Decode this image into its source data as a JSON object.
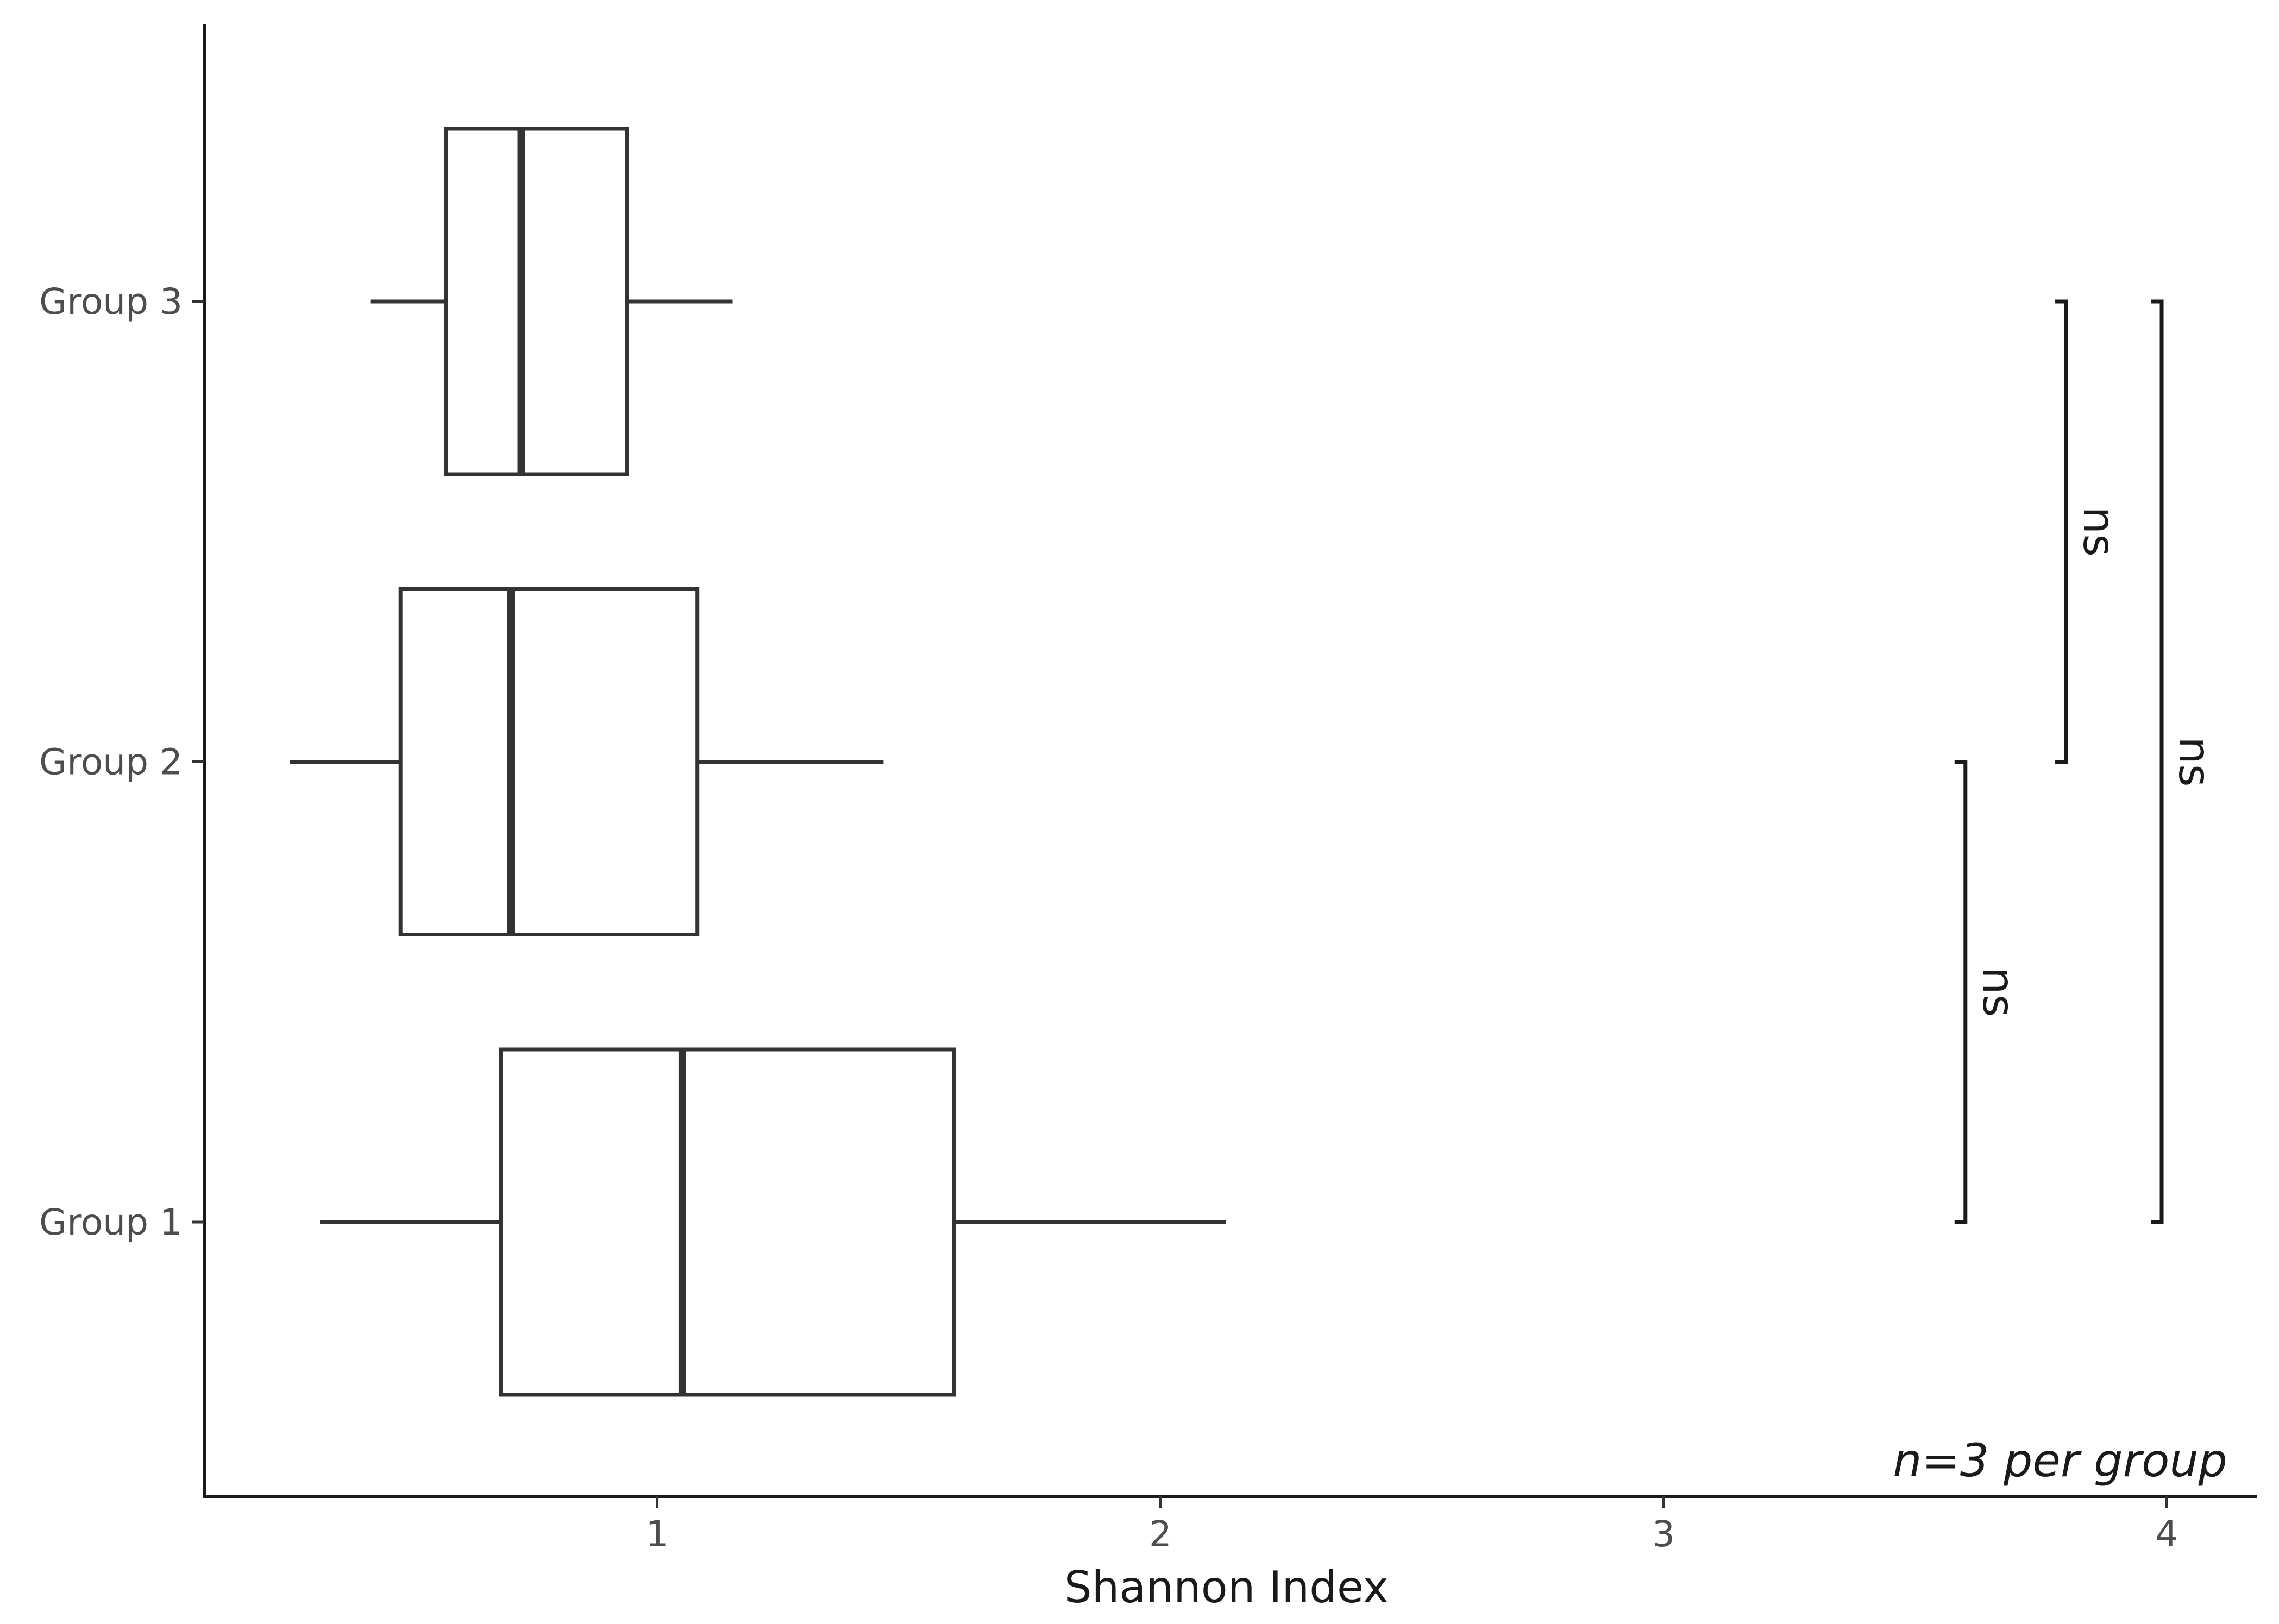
{
  "chart_data": {
    "type": "boxplot",
    "orientation": "horizontal",
    "xlabel": "Shannon Index",
    "ylabel": "",
    "xlim": [
      0.1,
      4.18
    ],
    "xticks": [
      1,
      2,
      3,
      4
    ],
    "xtick_labels": [
      "1",
      "2",
      "3",
      "4"
    ],
    "categories": [
      "Group 1",
      "Group 2",
      "Group 3"
    ],
    "boxes": [
      {
        "label": "Group 1",
        "whisker_low": 0.33,
        "q1": 0.69,
        "median": 1.05,
        "q3": 1.59,
        "whisker_high": 2.13
      },
      {
        "label": "Group 2",
        "whisker_low": 0.27,
        "q1": 0.49,
        "median": 0.71,
        "q3": 1.08,
        "whisker_high": 1.45
      },
      {
        "label": "Group 3",
        "whisker_low": 0.43,
        "q1": 0.58,
        "median": 0.73,
        "q3": 0.94,
        "whisker_high": 1.15
      }
    ],
    "comparisons": [
      {
        "from": "Group 1",
        "to": "Group 2",
        "x": 3.6,
        "label": "ns"
      },
      {
        "from": "Group 2",
        "to": "Group 3",
        "x": 3.8,
        "label": "ns"
      },
      {
        "from": "Group 1",
        "to": "Group 3",
        "x": 3.99,
        "label": "ns"
      }
    ],
    "annotation": "n=3 per group",
    "grid": false,
    "legend": "none"
  }
}
